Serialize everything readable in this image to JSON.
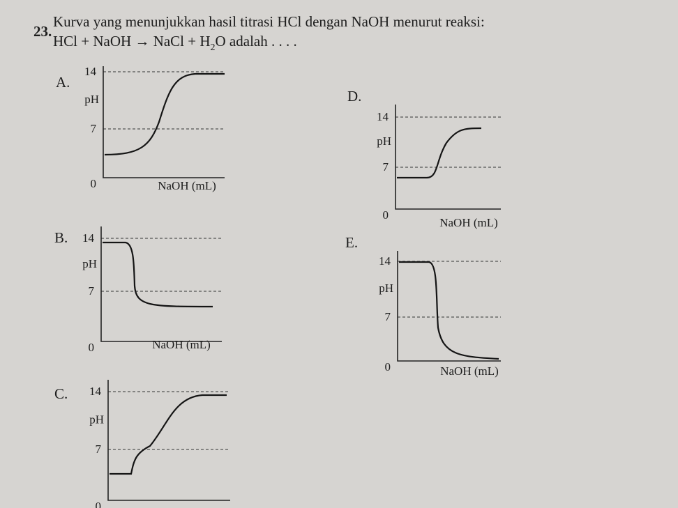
{
  "question": {
    "number": "23.",
    "text": "Kurva yang menunjukkan hasil titrasi HCl dengan NaOH menurut reaksi:",
    "equation": {
      "main": "HCl + NaOH → NaCl + H",
      "subscript": "2",
      "rest": "O  adalah . . . ."
    }
  },
  "options": [
    {
      "letter": "A.",
      "y_label": "pH",
      "x_label": "NaOH (mL)",
      "ticks": [
        "14",
        "7",
        "0"
      ]
    },
    {
      "letter": "B.",
      "y_label": "pH",
      "x_label": "NaOH (mL)",
      "ticks": [
        "14",
        "7",
        "0"
      ]
    },
    {
      "letter": "C.",
      "y_label": "pH",
      "ticks": [
        "14",
        "7",
        "0"
      ]
    },
    {
      "letter": "D.",
      "y_label": "pH",
      "x_label": "NaOH (mL)",
      "ticks": [
        "14",
        "7",
        "0"
      ]
    },
    {
      "letter": "E.",
      "y_label": "pH",
      "x_label": "NaOH (mL)",
      "ticks": [
        "14",
        "7",
        "0"
      ]
    }
  ]
}
